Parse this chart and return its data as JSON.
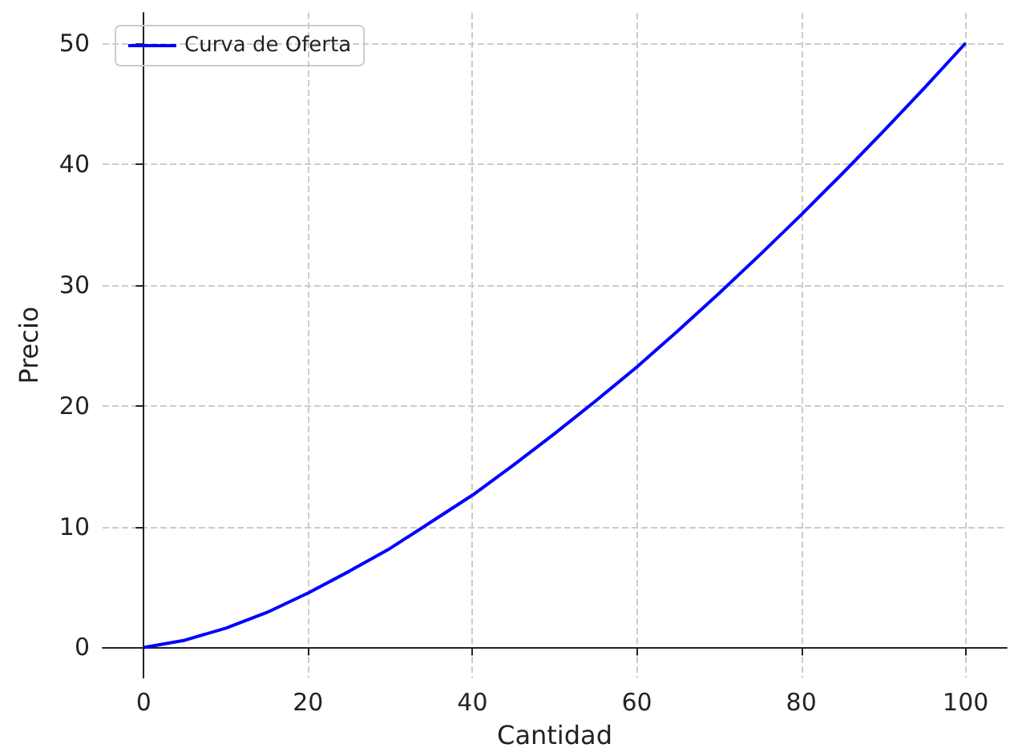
{
  "chart_data": {
    "type": "line",
    "xlabel": "Cantidad",
    "ylabel": "Precio",
    "x": [
      0,
      5,
      10,
      15,
      20,
      25,
      30,
      35,
      40,
      45,
      50,
      55,
      60,
      65,
      70,
      75,
      80,
      85,
      90,
      95,
      100
    ],
    "series": [
      {
        "name": "Curva de Oferta",
        "color": "#0000ff",
        "values": [
          0,
          0.6,
          1.6,
          2.9,
          4.5,
          6.3,
          8.2,
          10.4,
          12.6,
          15.1,
          17.7,
          20.4,
          23.2,
          26.2,
          29.3,
          32.5,
          35.8,
          39.2,
          42.7,
          46.3,
          50
        ]
      }
    ],
    "xlim": [
      -5,
      105
    ],
    "xticks": [
      0,
      20,
      40,
      60,
      80,
      100
    ],
    "ylim": [
      -2.5,
      52.5
    ],
    "yticks": [
      0,
      10,
      20,
      30,
      40,
      50
    ],
    "grid": true,
    "legend": "top left",
    "marker": "none",
    "line_style": "solid"
  }
}
